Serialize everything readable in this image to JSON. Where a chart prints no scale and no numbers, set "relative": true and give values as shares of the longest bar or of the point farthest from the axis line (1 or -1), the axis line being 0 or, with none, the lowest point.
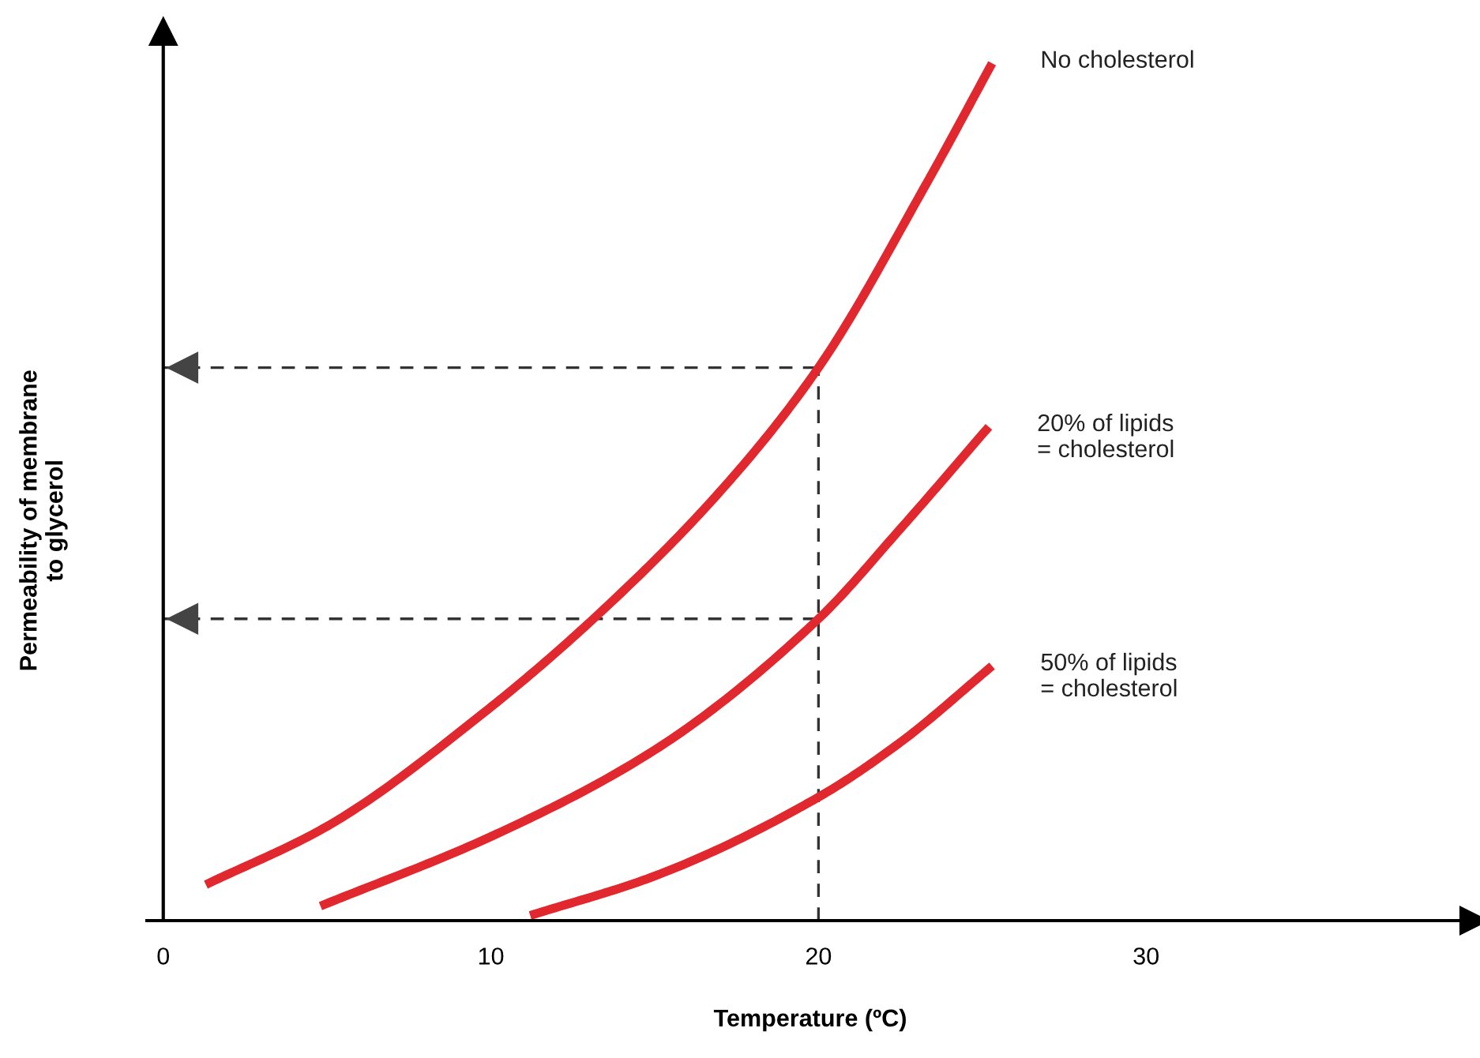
{
  "chart_data": {
    "type": "line",
    "relative": true,
    "xlabel": "Temperature (ºC)",
    "ylabel": "Permeability of membrane\nto glycerol",
    "xlim": [
      -0.5,
      40
    ],
    "xticks": [
      0,
      10,
      20,
      30
    ],
    "tick_labels": "x",
    "marker": "none",
    "line_style": "solid",
    "series": [
      {
        "name": "No cholesterol",
        "color": "#e0282e",
        "x": [
          1.3,
          5,
          9.8,
          13.3,
          17.1,
          20,
          23.3,
          25.3
        ],
        "values": [
          0.042,
          0.11,
          0.243,
          0.358,
          0.505,
          0.645,
          0.86,
          1
        ]
      },
      {
        "name": "20% of lipids\n= cholesterol",
        "color": "#e0282e",
        "x": [
          4.8,
          10,
          15,
          20,
          22.5,
          25.2
        ],
        "values": [
          0.017,
          0.098,
          0.199,
          0.352,
          0.457,
          0.576
        ]
      },
      {
        "name": "50% of lipids\n= cholesterol",
        "color": "#e0282e",
        "x": [
          11.2,
          15,
          20,
          22.5,
          25.3
        ],
        "values": [
          0.006,
          0.052,
          0.144,
          0.208,
          0.297
        ]
      }
    ],
    "ref_lines": [
      {
        "axis": "y",
        "value": 0.645,
        "color": "#333333",
        "line_style": "dashed"
      },
      {
        "axis": "y",
        "value": 0.352,
        "color": "#333333",
        "line_style": "dashed"
      },
      {
        "axis": "x",
        "value": 20,
        "color": "#333333",
        "line_style": "dashed"
      }
    ]
  }
}
